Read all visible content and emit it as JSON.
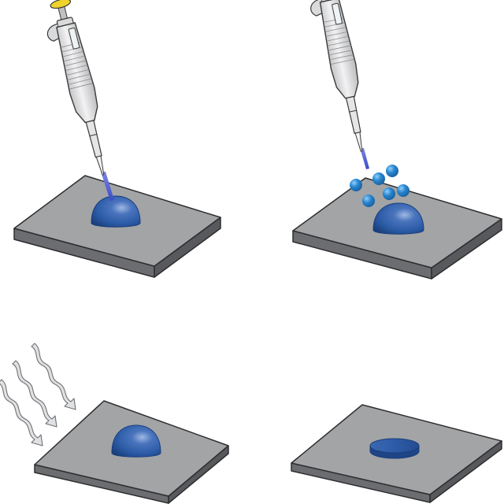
{
  "figure": {
    "panels": [
      {
        "id": "deposit-drop",
        "contents": [
          "pipette",
          "liquid-stream",
          "hemispherical-drop",
          "substrate-slab"
        ]
      },
      {
        "id": "add-particles",
        "contents": [
          "pipette",
          "liquid-stream",
          "particles",
          "hemispherical-drop",
          "substrate-slab"
        ],
        "particle_count": 6
      },
      {
        "id": "evaporation",
        "contents": [
          "airflow-arrows",
          "hemispherical-drop",
          "substrate-slab"
        ],
        "arrow_count": 3
      },
      {
        "id": "dried-film",
        "contents": [
          "flat-disc-film",
          "substrate-slab"
        ]
      }
    ]
  },
  "colors": {
    "slab_top": "#a3a4a6",
    "slab_side": "#6c6d70",
    "slab_edge": "#2e2e30",
    "drop": "#2b5aa5",
    "drop_dark": "#1a3f7c",
    "particle": "#2a86cf",
    "pipette_body": "#d6d7d8",
    "pipette_outline": "#3a3a3a",
    "plunger_cap": "#f0d32a",
    "stream": "#5a68d6",
    "arrow_fill": "#e0e1e3"
  }
}
